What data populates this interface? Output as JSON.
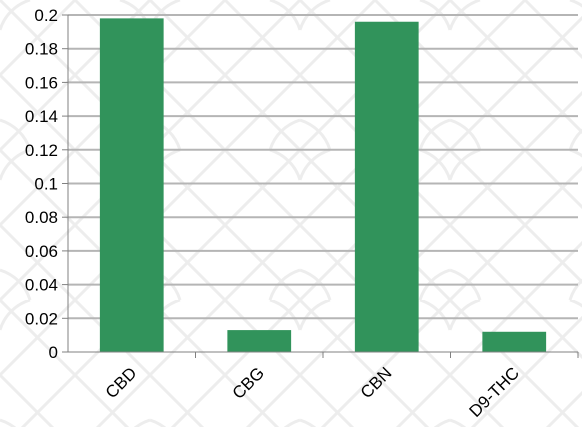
{
  "chart_data": {
    "type": "bar",
    "title": "",
    "xlabel": "",
    "ylabel": "",
    "categories": [
      "CBD",
      "CBG",
      "CBN",
      "D9-THC"
    ],
    "values": [
      0.198,
      0.013,
      0.196,
      0.012
    ],
    "ylim": [
      0,
      0.2
    ],
    "yticks": [
      "0",
      "0.02",
      "0.04",
      "0.06",
      "0.08",
      "0.1",
      "0.12",
      "0.14",
      "0.16",
      "0.18",
      "0.2"
    ],
    "grid": true,
    "legend": "none",
    "bar_color": "#31935b",
    "grid_color": "#b5b5b5",
    "background_pattern": "light grey decorative lattice"
  }
}
